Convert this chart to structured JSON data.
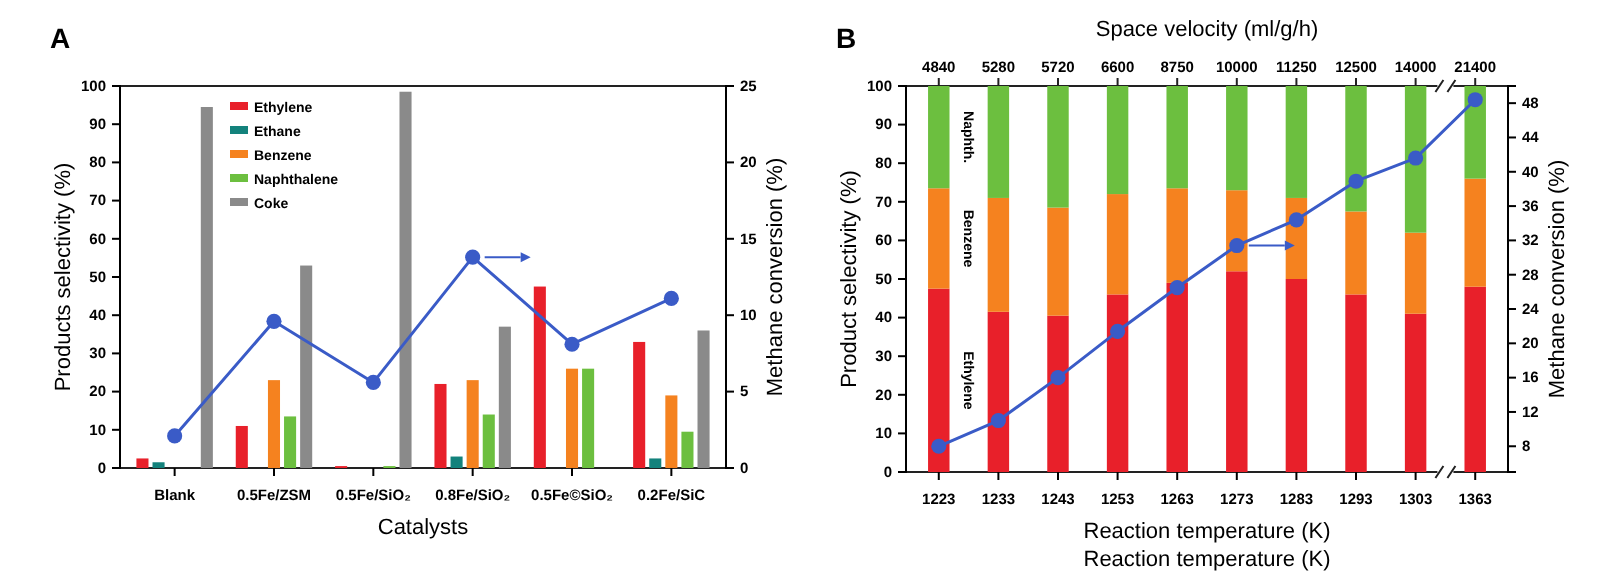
{
  "chart_data": [
    {
      "type": "bar",
      "annotations": [
        "A"
      ],
      "xlabel": "Catalysts",
      "ylabel": "Products selectivity (%)",
      "y2label": "Methane conversion (%)",
      "categories": [
        "Blank",
        "0.5Fe/ZSM",
        "0.5Fe/SiO₂",
        "0.8Fe/SiO₂",
        "0.5Fe©SiO₂",
        "0.2Fe/SiC"
      ],
      "series": [
        {
          "name": "Ethylene",
          "color": "#e8202a",
          "values": [
            2.5,
            11,
            0.5,
            22,
            47.5,
            33
          ]
        },
        {
          "name": "Ethane",
          "color": "#13827c",
          "values": [
            1.5,
            0,
            0,
            3,
            0,
            2.5
          ]
        },
        {
          "name": "Benzene",
          "color": "#f5821f",
          "values": [
            0,
            23,
            0,
            23,
            26,
            19
          ]
        },
        {
          "name": "Naphthalene",
          "color": "#6cbf3f",
          "values": [
            0,
            13.5,
            0.5,
            14,
            26,
            9.5
          ]
        },
        {
          "name": "Coke",
          "color": "#8a8a8a",
          "values": [
            94.5,
            53,
            98.5,
            37,
            0,
            36
          ]
        },
        {
          "type": "line",
          "axis": "y2",
          "color": "#3a5bc7",
          "values": [
            2.1,
            9.6,
            5.6,
            13.8,
            8.1,
            11.1
          ]
        }
      ],
      "ylim": [
        0,
        100
      ],
      "yticks": [
        0,
        10,
        20,
        30,
        40,
        50,
        60,
        70,
        80,
        90,
        100
      ],
      "y2lim": [
        0,
        25
      ],
      "y2ticks": [
        0,
        5,
        10,
        15,
        20,
        25
      ],
      "legend": "top left",
      "marker": "circle",
      "line_style": "solid"
    },
    {
      "type": "bar",
      "stacked": true,
      "annotations": [
        "B",
        "Reaction temperature (K)",
        "4840",
        "5280",
        "5720",
        "6600",
        "8750",
        "10000",
        "11250",
        "12500",
        "14000",
        "21400"
      ],
      "xlabel": "Reaction temperature (K)",
      "x2label": "Space velocity (ml/g/h)",
      "ylabel": "Product selectivity (%)",
      "y2label": "Methane conversion (%)",
      "categories": [
        "1223",
        "1233",
        "1243",
        "1253",
        "1263",
        "1273",
        "1283",
        "1293",
        "1303",
        "1363"
      ],
      "series": [
        {
          "name": "Ethylene",
          "color": "#e8202a",
          "values": [
            47.5,
            41.5,
            40.5,
            46,
            49,
            52,
            50,
            46,
            41,
            48
          ]
        },
        {
          "name": "Benzene",
          "color": "#f5821f",
          "values": [
            26,
            29.5,
            28,
            26,
            24.5,
            21,
            21,
            21.5,
            21,
            28
          ]
        },
        {
          "name": "Naphth.",
          "color": "#6cbf3f",
          "values": [
            26.5,
            29,
            31.5,
            28,
            26.5,
            27,
            29,
            32.5,
            38,
            24
          ]
        },
        {
          "type": "line",
          "axis": "y2",
          "color": "#3a5bc7",
          "values": [
            8,
            11,
            16,
            21.4,
            26.5,
            31.4,
            34.4,
            38.9,
            41.6,
            48.4
          ]
        }
      ],
      "ylim": [
        0,
        100
      ],
      "yticks": [
        0,
        10,
        20,
        30,
        40,
        50,
        60,
        70,
        80,
        90,
        100
      ],
      "y2lim": [
        5,
        50
      ],
      "y2ticks": [
        8,
        12,
        16,
        20,
        24,
        28,
        32,
        36,
        40,
        44,
        48
      ],
      "legend": false,
      "marker": "circle",
      "line_style": "solid"
    }
  ]
}
